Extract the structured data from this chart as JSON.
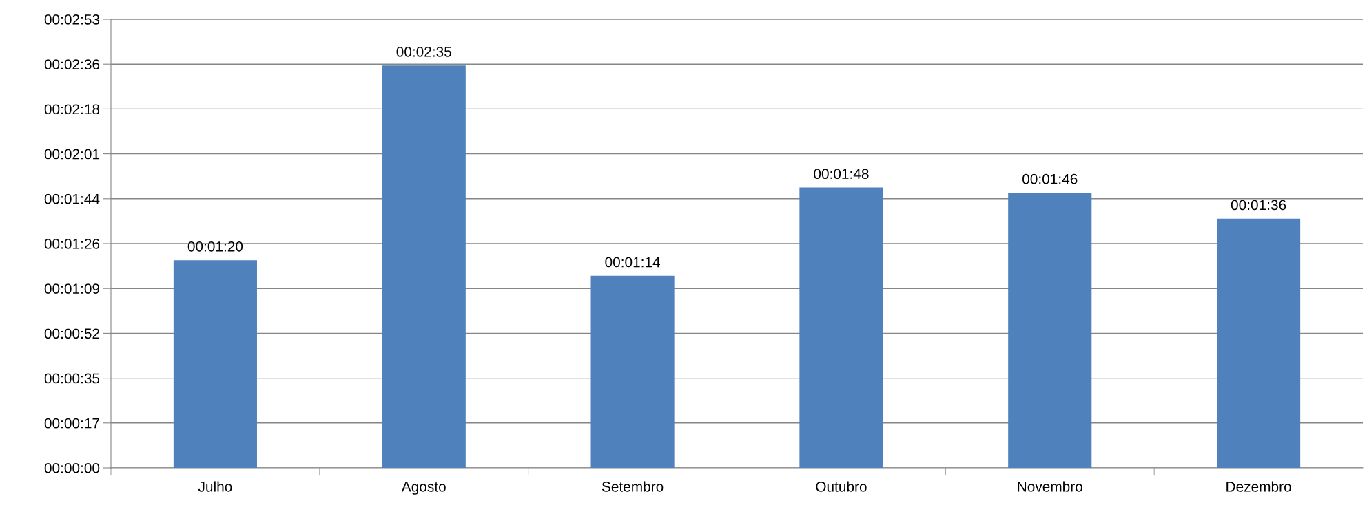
{
  "chart_data": {
    "type": "bar",
    "categories": [
      "Julho",
      "Agosto",
      "Setembro",
      "Outubro",
      "Novembro",
      "Dezembro"
    ],
    "values": [
      80,
      155,
      74,
      108,
      106,
      96
    ],
    "value_labels": [
      "00:01:20",
      "00:02:35",
      "00:01:14",
      "00:01:48",
      "00:01:46",
      "00:01:36"
    ],
    "color": "#4f81bd",
    "ylim": [
      0,
      172.8
    ],
    "yticks": [
      {
        "value": 0,
        "label": "00:00:00"
      },
      {
        "value": 17.28,
        "label": "00:00:17"
      },
      {
        "value": 34.56,
        "label": "00:00:35"
      },
      {
        "value": 51.84,
        "label": "00:00:52"
      },
      {
        "value": 69.12,
        "label": "00:01:09"
      },
      {
        "value": 86.4,
        "label": "00:01:26"
      },
      {
        "value": 103.68,
        "label": "00:01:44"
      },
      {
        "value": 120.96,
        "label": "00:02:01"
      },
      {
        "value": 138.24,
        "label": "00:02:18"
      },
      {
        "value": 155.52,
        "label": "00:02:36"
      },
      {
        "value": 172.8,
        "label": "00:02:53"
      }
    ],
    "grid": "y"
  }
}
